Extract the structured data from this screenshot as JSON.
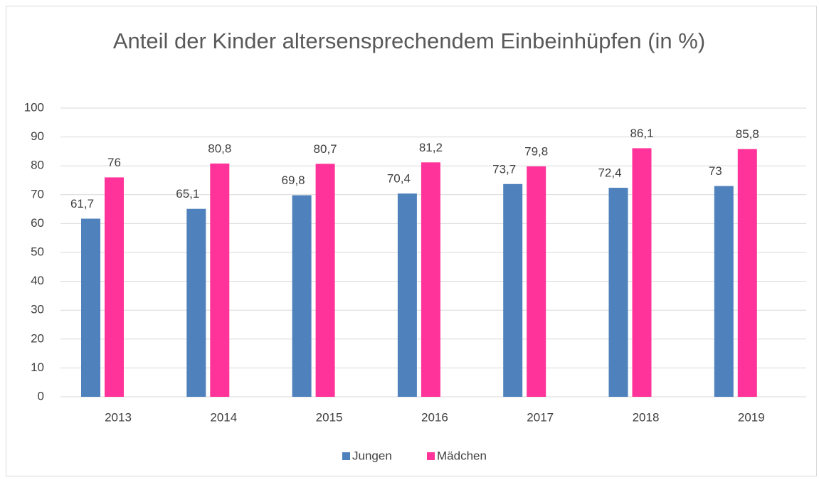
{
  "chart_data": {
    "type": "bar",
    "title": "Anteil der Kinder altersensprechendem Einbeinhüpfen (in %)",
    "categories": [
      "2013",
      "2014",
      "2015",
      "2016",
      "2017",
      "2018",
      "2019"
    ],
    "series": [
      {
        "name": "Jungen",
        "color": "#4f81bd",
        "values": [
          61.7,
          65.1,
          69.8,
          70.4,
          73.7,
          72.4,
          73
        ],
        "value_labels": [
          "61,7",
          "65,1",
          "69,8",
          "70,4",
          "73,7",
          "72,4",
          "73"
        ]
      },
      {
        "name": "Mädchen",
        "color": "#ff3399",
        "values": [
          76,
          80.8,
          80.7,
          81.2,
          79.8,
          86.1,
          85.8
        ],
        "value_labels": [
          "76",
          "80,8",
          "80,7",
          "81,2",
          "79,8",
          "86,1",
          "85,8"
        ]
      }
    ],
    "ylim": [
      0,
      100
    ],
    "yticks": [
      0,
      10,
      20,
      30,
      40,
      50,
      60,
      70,
      80,
      90,
      100
    ],
    "grid": true,
    "legend": "bottom"
  }
}
